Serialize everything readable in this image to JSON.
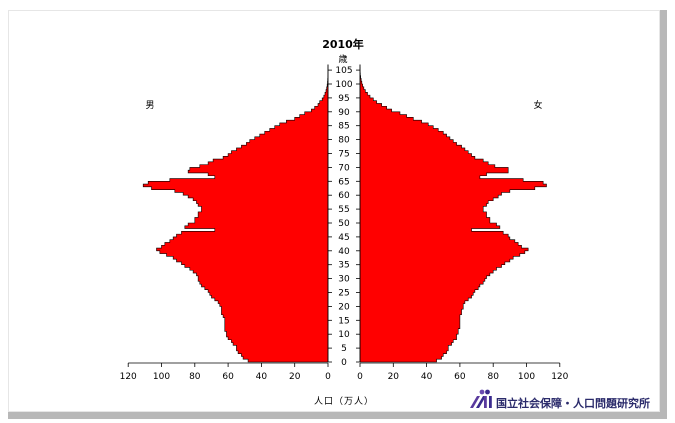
{
  "chart_data": {
    "type": "bar",
    "orientation": "horizontal-pyramid",
    "title": "2010年",
    "age_axis_label": "歳",
    "xlabel": "人口（万人）",
    "left_label": "男",
    "right_label": "女",
    "age_ticks": [
      0,
      5,
      10,
      15,
      20,
      25,
      30,
      35,
      40,
      45,
      50,
      55,
      60,
      65,
      70,
      75,
      80,
      85,
      90,
      95,
      100,
      105
    ],
    "x_ticks_left": [
      "120",
      "100",
      "80",
      "60",
      "40",
      "20",
      "0"
    ],
    "x_ticks_right": [
      "0",
      "20",
      "40",
      "60",
      "80",
      "100",
      "120"
    ],
    "xlim": [
      0,
      120
    ],
    "ylim": [
      0,
      107
    ],
    "ages": [
      0,
      1,
      2,
      3,
      4,
      5,
      6,
      7,
      8,
      9,
      10,
      11,
      12,
      13,
      14,
      15,
      16,
      17,
      18,
      19,
      20,
      21,
      22,
      23,
      24,
      25,
      26,
      27,
      28,
      29,
      30,
      31,
      32,
      33,
      34,
      35,
      36,
      37,
      38,
      39,
      40,
      41,
      42,
      43,
      44,
      45,
      46,
      47,
      48,
      49,
      50,
      51,
      52,
      53,
      54,
      55,
      56,
      57,
      58,
      59,
      60,
      61,
      62,
      63,
      64,
      65,
      66,
      67,
      68,
      69,
      70,
      71,
      72,
      73,
      74,
      75,
      76,
      77,
      78,
      79,
      80,
      81,
      82,
      83,
      84,
      85,
      86,
      87,
      88,
      89,
      90,
      91,
      92,
      93,
      94,
      95,
      96,
      97,
      98,
      99,
      100,
      101,
      102,
      103,
      104,
      105,
      106
    ],
    "series": [
      {
        "name": "男",
        "values": [
          48,
          51,
          52,
          54,
          55,
          55,
          57,
          58,
          60,
          61,
          61,
          62,
          62,
          62,
          62,
          62,
          63,
          64,
          64,
          64,
          65,
          66,
          68,
          70,
          71,
          72,
          74,
          76,
          77,
          78,
          78,
          79,
          81,
          83,
          86,
          88,
          91,
          93,
          97,
          101,
          103,
          100,
          98,
          95,
          93,
          91,
          88,
          68,
          86,
          84,
          80,
          80,
          78,
          78,
          76,
          76,
          78,
          79,
          81,
          84,
          87,
          92,
          106,
          111,
          108,
          95,
          68,
          72,
          84,
          83,
          77,
          72,
          69,
          63,
          60,
          58,
          55,
          52,
          49,
          47,
          44,
          41,
          38,
          35,
          32,
          29,
          25,
          20,
          17,
          14,
          10,
          8,
          6,
          5,
          3.5,
          2.5,
          1.8,
          1.2,
          0.8,
          0.5,
          0.3,
          0.2,
          0.1,
          0.05,
          0.02,
          0.01,
          0
        ]
      },
      {
        "name": "女",
        "values": [
          46,
          49,
          50,
          52,
          53,
          53,
          55,
          56,
          58,
          58,
          59,
          59,
          60,
          60,
          60,
          60,
          60,
          61,
          61,
          62,
          62,
          63,
          65,
          67,
          68,
          69,
          71,
          72,
          74,
          75,
          76,
          78,
          80,
          82,
          85,
          87,
          90,
          92,
          96,
          99,
          101,
          97,
          95,
          93,
          90,
          89,
          86,
          67,
          84,
          82,
          78,
          78,
          76,
          76,
          74,
          74,
          76,
          77,
          80,
          83,
          85,
          90,
          105,
          112,
          110,
          98,
          72,
          76,
          89,
          89,
          81,
          77,
          74,
          69,
          67,
          65,
          63,
          61,
          58,
          56,
          54,
          52,
          50,
          47,
          44,
          41,
          37,
          32,
          28,
          24,
          19,
          16,
          13,
          10,
          8,
          6,
          4.5,
          3.2,
          2.3,
          1.6,
          1.1,
          0.7,
          0.4,
          0.2,
          0.1,
          0.05,
          0
        ]
      }
    ],
    "colors": {
      "bar": "#ff0000",
      "bar_edge": "#000000"
    }
  },
  "footer": {
    "logo_icon": "ipss-logo-icon",
    "organization": "国立社会保障・人口問題研究所"
  }
}
